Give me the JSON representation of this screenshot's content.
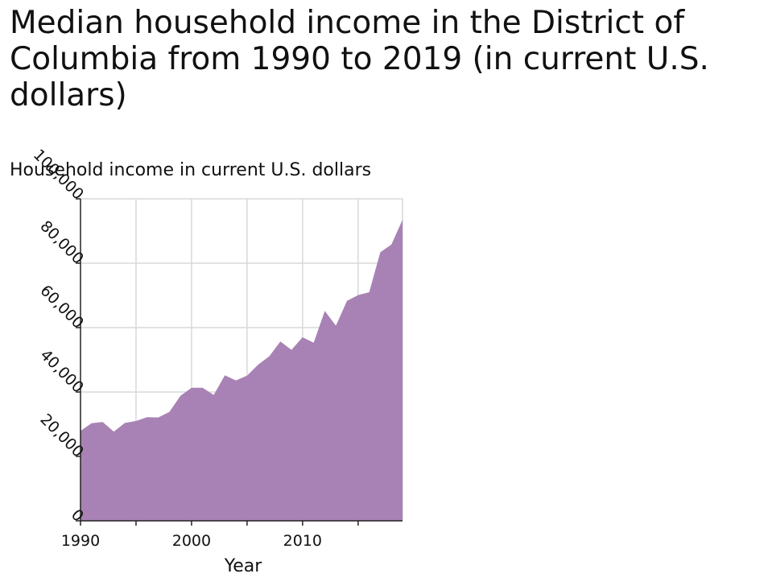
{
  "chart_data": {
    "type": "area",
    "title": "Median household income in the District of Columbia from 1990 to 2019 (in current U.S. dollars)",
    "xlabel": "Year",
    "ylabel": "Household income in current U.S. dollars",
    "xlim": [
      1990,
      2019
    ],
    "ylim": [
      0,
      100000
    ],
    "x_ticks": [
      1990,
      1995,
      2000,
      2005,
      2010,
      2015
    ],
    "x_tick_labels": [
      "1990",
      "",
      "2000",
      "",
      "2010",
      ""
    ],
    "y_ticks": [
      0,
      20000,
      40000,
      60000,
      80000,
      100000
    ],
    "y_tick_labels": [
      "0",
      "20,000",
      "40,000",
      "60,000",
      "80,000",
      "100,000"
    ],
    "grid": true,
    "fill_color": "#a882b5",
    "x": [
      1990,
      1991,
      1992,
      1993,
      1994,
      1995,
      1996,
      1997,
      1998,
      1999,
      2000,
      2001,
      2002,
      2003,
      2004,
      2005,
      2006,
      2007,
      2008,
      2009,
      2010,
      2011,
      2012,
      2013,
      2014,
      2015,
      2016,
      2017,
      2018,
      2019
    ],
    "values": [
      27900,
      30300,
      30700,
      27700,
      30400,
      31000,
      32200,
      32100,
      33800,
      38800,
      41300,
      41300,
      39100,
      45200,
      43600,
      45100,
      48500,
      51100,
      55700,
      53100,
      57000,
      55300,
      65200,
      60600,
      68300,
      70100,
      71000,
      83400,
      85800,
      93500
    ]
  }
}
